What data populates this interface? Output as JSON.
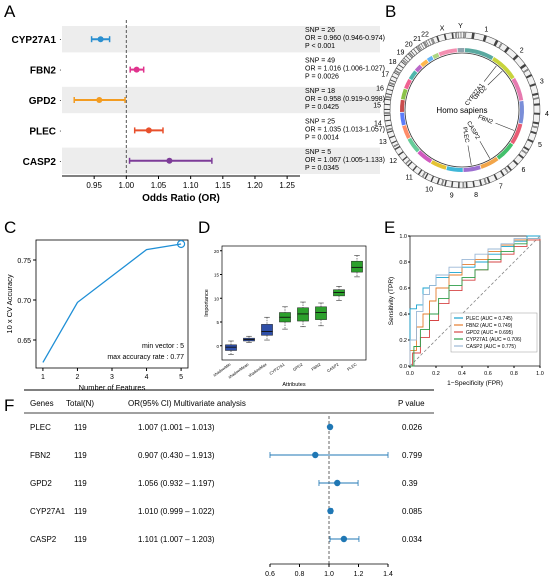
{
  "panels": {
    "a": "A",
    "b": "B",
    "c": "C",
    "d": "D",
    "e": "E",
    "f": "F"
  },
  "chart_data": [
    {
      "panel": "A",
      "type": "forest",
      "xlabel": "Odds Ratio (OR)",
      "xlim": [
        0.9,
        1.27
      ],
      "xticks": [
        "0.95",
        "1.00",
        "1.05",
        "1.10",
        "1.15",
        "1.20",
        "1.25"
      ],
      "reference_line": 1.0,
      "rows": [
        {
          "gene": "CYP27A1",
          "or": 0.96,
          "lo": 0.946,
          "hi": 0.974,
          "color": "#2a8fd0",
          "snp": "SNP = 26",
          "or_text": "OR = 0.960 (0.946-0.974)",
          "p": "P < 0.001",
          "shaded": true
        },
        {
          "gene": "FBN2",
          "or": 1.016,
          "lo": 1.006,
          "hi": 1.027,
          "color": "#e0338d",
          "snp": "SNP = 49",
          "or_text": "OR = 1.016 (1.006-1.027)",
          "p": "P = 0.0026",
          "shaded": false
        },
        {
          "gene": "GPD2",
          "or": 0.958,
          "lo": 0.919,
          "hi": 0.998,
          "color": "#f39c21",
          "snp": "SNP = 18",
          "or_text": "OR = 0.958 (0.919-0.998)",
          "p": "P = 0.0425",
          "shaded": true
        },
        {
          "gene": "PLEC",
          "or": 1.035,
          "lo": 1.013,
          "hi": 1.057,
          "color": "#e8502c",
          "snp": "SNP = 25",
          "or_text": "OR = 1.035 (1.013-1.057)",
          "p": "P = 0.0014",
          "shaded": false
        },
        {
          "gene": "CASP2",
          "or": 1.067,
          "lo": 1.005,
          "hi": 1.133,
          "color": "#7d3c98",
          "snp": "SNP = 5",
          "or_text": "OR = 1.067 (1.005-1.133)",
          "p": "P = 0.0345",
          "shaded": true
        }
      ]
    },
    {
      "panel": "B",
      "type": "circos",
      "center_label": "Homo sapiens",
      "chromosomes": [
        "1",
        "2",
        "3",
        "4",
        "5",
        "6",
        "7",
        "8",
        "9",
        "10",
        "11",
        "12",
        "13",
        "14",
        "15",
        "16",
        "17",
        "18",
        "19",
        "20",
        "21",
        "22",
        "X",
        "Y"
      ],
      "genes": [
        {
          "name": "CYP27A1",
          "chrom": "2"
        },
        {
          "name": "GPD2",
          "chrom": "2"
        },
        {
          "name": "FBN2",
          "chrom": "5"
        },
        {
          "name": "CASP2",
          "chrom": "7"
        },
        {
          "name": "PLEC",
          "chrom": "8"
        }
      ]
    },
    {
      "panel": "C",
      "type": "line",
      "xlabel": "Number of Features",
      "ylabel": "10 x CV Accuracy",
      "x": [
        1,
        2,
        3,
        4,
        5
      ],
      "y": [
        0.622,
        0.697,
        0.73,
        0.763,
        0.77
      ],
      "xlim": [
        0.8,
        5.2
      ],
      "ylim": [
        0.615,
        0.775
      ],
      "yticks": [
        0.65,
        0.7,
        0.75
      ],
      "ytick_labels": [
        "0.65",
        "0.70",
        "0.75"
      ],
      "xticks": [
        "1",
        "2",
        "3",
        "4",
        "5"
      ],
      "highlight_index": 4,
      "annotations": [
        "min vector : 5",
        "max accuracy rate : 0.77"
      ]
    },
    {
      "panel": "D",
      "type": "boxplot",
      "xlabel": "Attributes",
      "ylabel": "Importance",
      "ylim": [
        -3,
        21
      ],
      "yticks": [
        0,
        5,
        10,
        15,
        20
      ],
      "boxes": [
        {
          "label": "shadowMin",
          "min": -1.8,
          "q1": -1.0,
          "median": -0.3,
          "q3": 0.2,
          "max": 1.0,
          "color": "#2f4fa8"
        },
        {
          "label": "shadowMean",
          "min": 0.7,
          "q1": 1.0,
          "median": 1.3,
          "q3": 1.6,
          "max": 2.0,
          "color": "#2f4fa8"
        },
        {
          "label": "shadowMax",
          "min": 1.2,
          "q1": 2.2,
          "median": 3.0,
          "q3": 4.5,
          "max": 6.0,
          "color": "#2f4fa8"
        },
        {
          "label": "CYP27A1",
          "min": 3.5,
          "q1": 5.0,
          "median": 6.0,
          "q3": 7.0,
          "max": 8.2,
          "color": "#2ca02c"
        },
        {
          "label": "GPD2",
          "min": 4.0,
          "q1": 5.2,
          "median": 6.7,
          "q3": 8.0,
          "max": 9.2,
          "color": "#2ca02c"
        },
        {
          "label": "FBN2",
          "min": 4.2,
          "q1": 5.5,
          "median": 7.0,
          "q3": 8.2,
          "max": 9.0,
          "color": "#2ca02c"
        },
        {
          "label": "CASP2",
          "min": 9.5,
          "q1": 10.5,
          "median": 11.2,
          "q3": 11.8,
          "max": 12.5,
          "color": "#2ca02c"
        },
        {
          "label": "PLEC",
          "min": 14.5,
          "q1": 15.5,
          "median": 16.5,
          "q3": 17.8,
          "max": 19.0,
          "color": "#2ca02c"
        }
      ]
    },
    {
      "panel": "E",
      "type": "roc",
      "xlabel": "1−Specificity (FPR)",
      "ylabel": "Sensitivity (TPR)",
      "ticks": [
        "0.0",
        "0.2",
        "0.4",
        "0.6",
        "0.8",
        "1.0"
      ],
      "series": [
        {
          "name": "PLEC (AUC = 0.745)",
          "color": "#17a2cf",
          "points": [
            [
              0,
              0
            ],
            [
              0,
              0.44
            ],
            [
              0.05,
              0.47
            ],
            [
              0.1,
              0.6
            ],
            [
              0.15,
              0.62
            ],
            [
              0.2,
              0.68
            ],
            [
              0.3,
              0.72
            ],
            [
              0.4,
              0.76
            ],
            [
              0.5,
              0.8
            ],
            [
              0.6,
              0.86
            ],
            [
              0.7,
              0.92
            ],
            [
              0.8,
              0.96
            ],
            [
              0.9,
              1
            ],
            [
              1,
              1
            ]
          ]
        },
        {
          "name": "FBN2 (AUC = 0.749)",
          "color": "#e57d2e",
          "points": [
            [
              0,
              0
            ],
            [
              0,
              0.12
            ],
            [
              0.05,
              0.3
            ],
            [
              0.1,
              0.4
            ],
            [
              0.15,
              0.5
            ],
            [
              0.2,
              0.6
            ],
            [
              0.3,
              0.7
            ],
            [
              0.4,
              0.78
            ],
            [
              0.5,
              0.82
            ],
            [
              0.6,
              0.88
            ],
            [
              0.7,
              0.93
            ],
            [
              0.8,
              0.97
            ],
            [
              1,
              1
            ]
          ]
        },
        {
          "name": "GPD2 (AUC = 0.695)",
          "color": "#d64545",
          "points": [
            [
              0,
              0
            ],
            [
              0.02,
              0.1
            ],
            [
              0.08,
              0.22
            ],
            [
              0.15,
              0.35
            ],
            [
              0.22,
              0.48
            ],
            [
              0.3,
              0.58
            ],
            [
              0.4,
              0.66
            ],
            [
              0.5,
              0.74
            ],
            [
              0.6,
              0.8
            ],
            [
              0.7,
              0.86
            ],
            [
              0.8,
              0.92
            ],
            [
              0.9,
              0.97
            ],
            [
              1,
              1
            ]
          ]
        },
        {
          "name": "CYP27A1 (AUC = 0.706)",
          "color": "#2e9e4a",
          "points": [
            [
              0,
              0
            ],
            [
              0.03,
              0.15
            ],
            [
              0.08,
              0.28
            ],
            [
              0.15,
              0.4
            ],
            [
              0.22,
              0.52
            ],
            [
              0.3,
              0.62
            ],
            [
              0.4,
              0.68
            ],
            [
              0.5,
              0.74
            ],
            [
              0.6,
              0.82
            ],
            [
              0.7,
              0.88
            ],
            [
              0.8,
              0.94
            ],
            [
              0.9,
              0.98
            ],
            [
              1,
              1
            ]
          ]
        },
        {
          "name": "CASP2 (AUC = 0.775)",
          "color": "#9bb8d6",
          "points": [
            [
              0,
              0
            ],
            [
              0,
              0.2
            ],
            [
              0.05,
              0.42
            ],
            [
              0.1,
              0.55
            ],
            [
              0.15,
              0.62
            ],
            [
              0.2,
              0.7
            ],
            [
              0.3,
              0.76
            ],
            [
              0.4,
              0.82
            ],
            [
              0.5,
              0.86
            ],
            [
              0.6,
              0.9
            ],
            [
              0.7,
              0.94
            ],
            [
              0.8,
              0.98
            ],
            [
              1,
              1
            ]
          ]
        }
      ]
    },
    {
      "panel": "F",
      "type": "forest_table",
      "headers": [
        "Genes",
        "Total(N)",
        "OR(95% CI) Multivariate analysis",
        "P value"
      ],
      "xticks": [
        "0.6",
        "0.8",
        "1.0",
        "1.2",
        "1.4"
      ],
      "xlim": [
        0.6,
        1.4
      ],
      "reference_line": 1.0,
      "color": "#1f77b4",
      "rows": [
        {
          "gene": "PLEC",
          "n": "119",
          "or_text": "1.007 (1.001 – 1.013)",
          "or": 1.007,
          "lo": 1.001,
          "hi": 1.013,
          "p": "0.026"
        },
        {
          "gene": "FBN2",
          "n": "119",
          "or_text": "0.907 (0.430 – 1.913)",
          "or": 0.907,
          "lo": 0.43,
          "hi": 1.913,
          "p": "0.799"
        },
        {
          "gene": "GPD2",
          "n": "119",
          "or_text": "1.056 (0.932 – 1.197)",
          "or": 1.056,
          "lo": 0.932,
          "hi": 1.197,
          "p": "0.39"
        },
        {
          "gene": "CYP27A1",
          "n": "119",
          "or_text": "1.010 (0.999 – 1.022)",
          "or": 1.01,
          "lo": 0.999,
          "hi": 1.022,
          "p": "0.085"
        },
        {
          "gene": "CASP2",
          "n": "119",
          "or_text": "1.101 (1.007 – 1.203)",
          "or": 1.101,
          "lo": 1.007,
          "hi": 1.203,
          "p": "0.034"
        }
      ]
    }
  ]
}
